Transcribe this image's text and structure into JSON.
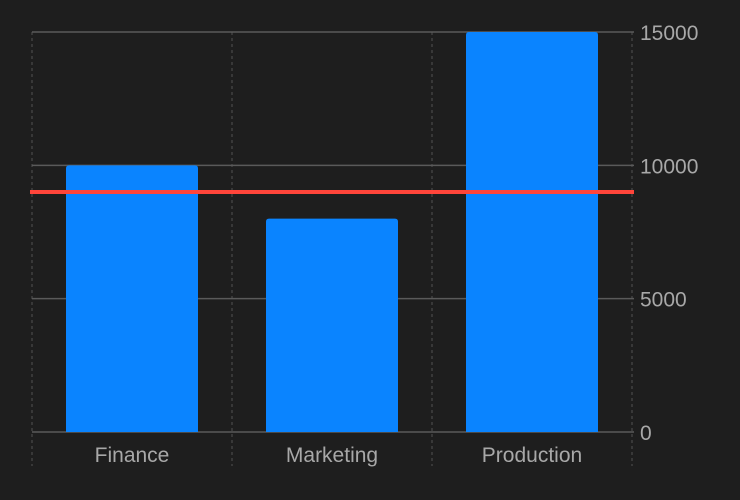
{
  "chart_data": {
    "type": "bar",
    "categories": [
      "Finance",
      "Marketing",
      "Production"
    ],
    "values": [
      10000,
      8000,
      15000
    ],
    "rule_value": 9000,
    "title": "",
    "xlabel": "",
    "ylabel": "",
    "ylim": [
      0,
      15000
    ],
    "yticks": [
      0,
      5000,
      10000,
      15000
    ],
    "ytick_labels": [
      "0",
      "5000",
      "10000",
      "15000"
    ],
    "y_axis_position": "right",
    "grid": true,
    "legend": "none"
  },
  "colors": {
    "background": "#1e1e1e",
    "bar": "#0a84ff",
    "rule": "#ff453a",
    "grid": "#5a5a5a",
    "vgrid": "#4a4a4a",
    "tick_text": "#a8a8a8"
  }
}
